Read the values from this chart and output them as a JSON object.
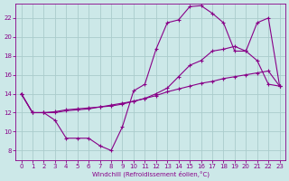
{
  "xlabel": "Windchill (Refroidissement éolien,°C)",
  "bg_color": "#cce8e8",
  "grid_color": "#aacccc",
  "line_color": "#880088",
  "marker": "+",
  "xlim": [
    -0.5,
    23.5
  ],
  "ylim": [
    7,
    23.5
  ],
  "xticks": [
    0,
    1,
    2,
    3,
    4,
    5,
    6,
    7,
    8,
    9,
    10,
    11,
    12,
    13,
    14,
    15,
    16,
    17,
    18,
    19,
    20,
    21,
    22,
    23
  ],
  "yticks": [
    8,
    10,
    12,
    14,
    16,
    18,
    20,
    22
  ],
  "line1_x": [
    0,
    1,
    2,
    3,
    4,
    5,
    6,
    7,
    8,
    9,
    10,
    11,
    12,
    13,
    14,
    15,
    16,
    17,
    18,
    19,
    20,
    21,
    22,
    23
  ],
  "line1_y": [
    14,
    12,
    12,
    11.2,
    9.3,
    9.3,
    9.3,
    8.5,
    8.0,
    10.5,
    14.3,
    15.0,
    18.7,
    21.5,
    21.8,
    23.2,
    23.3,
    22.5,
    21.5,
    18.5,
    18.5,
    17.5,
    15.0,
    14.8
  ],
  "line2_x": [
    0,
    1,
    2,
    3,
    4,
    5,
    6,
    7,
    8,
    9,
    10,
    11,
    12,
    13,
    14,
    15,
    16,
    17,
    18,
    19,
    20,
    21,
    22,
    23
  ],
  "line2_y": [
    14,
    12,
    12,
    12.1,
    12.3,
    12.4,
    12.5,
    12.6,
    12.8,
    13.0,
    13.2,
    13.5,
    13.8,
    14.2,
    14.5,
    14.8,
    15.1,
    15.3,
    15.6,
    15.8,
    16.0,
    16.2,
    16.4,
    14.8
  ],
  "line3_x": [
    0,
    1,
    2,
    3,
    4,
    5,
    6,
    7,
    8,
    9,
    10,
    11,
    12,
    13,
    14,
    15,
    16,
    17,
    18,
    19,
    20,
    21,
    22,
    23
  ],
  "line3_y": [
    14,
    12,
    12,
    12.0,
    12.2,
    12.3,
    12.4,
    12.6,
    12.7,
    12.9,
    13.2,
    13.5,
    14.0,
    14.6,
    15.8,
    17.0,
    17.5,
    18.5,
    18.7,
    19.0,
    18.5,
    21.5,
    22.0,
    14.8
  ]
}
